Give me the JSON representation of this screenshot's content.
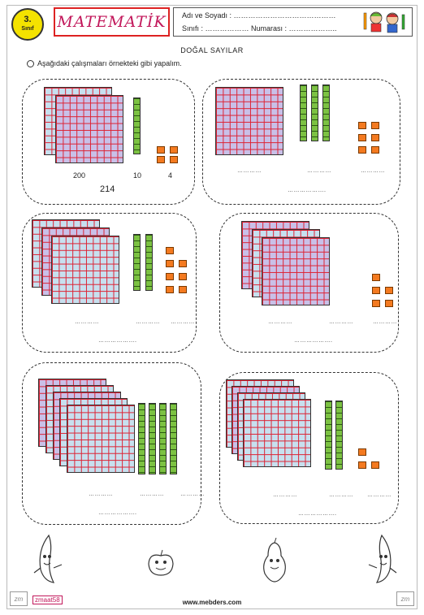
{
  "header": {
    "grade_number": "3.",
    "grade_word": "Sınıf",
    "title": "MATEMATİK",
    "name_line": "Adı ve Soyadı : ……………………………………",
    "class_line": "Sınıfı : ……………… Numarası : ……………….."
  },
  "heading": "DOĞAL   SAYILAR",
  "instruction": "Aşağıdaki çalışmaları örnekteki gibi yapalım.",
  "example": {
    "hundreds_label": "200",
    "tens_label": "10",
    "ones_label": "4",
    "total": "214"
  },
  "blank_short": "…………",
  "blank_long": "……………….",
  "footer": {
    "tag": "zmaat58",
    "url": "www.mebders.com",
    "corner_left": "zm",
    "corner_right": "zm"
  },
  "icons": [
    "smiley-icon",
    "crayons-icon",
    "banana-icon",
    "pear-icon",
    "apple-icon"
  ],
  "colors": {
    "title": "#c2185b",
    "grade_badge": "#f4e200",
    "hundred_purple": "#c9c0e8",
    "hundred_blue": "#c7e0ef",
    "ten_green": "#7cc242",
    "one_orange": "#f47a20",
    "grid_line": "#dd2233"
  }
}
